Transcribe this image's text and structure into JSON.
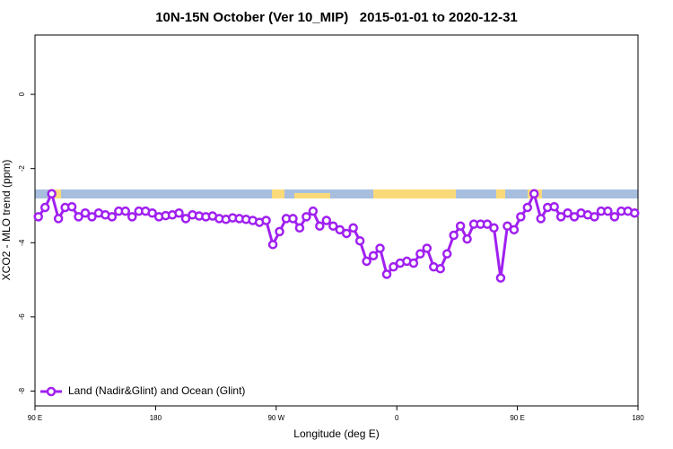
{
  "chart_data": {
    "type": "line",
    "title": "10N-15N October (Ver 10_MIP)   2015-01-01 to 2020-12-31",
    "x_label": "Longitude (deg E)",
    "y_label": "XCO2 - MLO trend (ppm)",
    "xlim": [
      90,
      540
    ],
    "xticks": [
      {
        "value": 90,
        "label": "90 E"
      },
      180,
      {
        "value": 270,
        "label": "90 W"
      },
      {
        "value": 360,
        "label": "0"
      },
      {
        "value": 450,
        "label": "90 E"
      },
      {
        "value": 540,
        "label": "180"
      }
    ],
    "ylim": [
      -8.4,
      1.6
    ],
    "yticks": [
      0,
      -2,
      -4,
      -6,
      -8
    ],
    "legend": "bottom-left",
    "series": [
      {
        "name": "Land (Nadir&Glint) and Ocean (Glint)",
        "color": "#a020f0",
        "x": [
          92.5,
          97.5,
          102.5,
          107.5,
          112.5,
          117.5,
          122.5,
          127.5,
          132.5,
          137.5,
          142.5,
          147.5,
          152.5,
          157.5,
          162.5,
          167.5,
          172.5,
          177.5,
          182.5,
          187.5,
          192.5,
          197.5,
          202.5,
          207.5,
          212.5,
          217.5,
          222.5,
          227.5,
          232.5,
          237.5,
          242.5,
          247.5,
          252.5,
          257.5,
          262.5,
          267.5,
          272.5,
          277.5,
          282.5,
          287.5,
          292.5,
          297.5,
          302.5,
          307.5,
          312.5,
          317.5,
          322.5,
          327.5,
          332.5,
          337.5,
          342.5,
          347.5,
          352.5,
          357.5,
          362.5,
          367.5,
          372.5,
          377.5,
          382.5,
          387.5,
          392.5,
          397.5,
          402.5,
          407.5,
          412.5,
          417.5,
          422.5,
          427.5,
          432.5,
          437.5,
          442.5,
          447.5,
          452.5,
          457.5,
          462.5,
          467.5,
          472.5,
          477.5,
          482.5,
          487.5,
          492.5,
          497.5,
          502.5,
          507.5,
          512.5,
          517.5,
          522.5,
          527.5,
          532.5,
          537.5
        ],
        "values": [
          -3.3,
          -3.05,
          -2.68,
          -3.35,
          -3.05,
          -3.03,
          -3.3,
          -3.2,
          -3.3,
          -3.2,
          -3.25,
          -3.3,
          -3.15,
          -3.15,
          -3.3,
          -3.15,
          -3.15,
          -3.2,
          -3.3,
          -3.27,
          -3.25,
          -3.2,
          -3.35,
          -3.25,
          -3.28,
          -3.3,
          -3.28,
          -3.35,
          -3.37,
          -3.33,
          -3.35,
          -3.37,
          -3.4,
          -3.45,
          -3.4,
          -4.05,
          -3.7,
          -3.35,
          -3.35,
          -3.6,
          -3.3,
          -3.15,
          -3.55,
          -3.4,
          -3.55,
          -3.65,
          -3.75,
          -3.6,
          -3.95,
          -4.5,
          -4.35,
          -4.15,
          -4.85,
          -4.65,
          -4.55,
          -4.5,
          -4.55,
          -4.3,
          -4.15,
          -4.65,
          -4.7,
          -4.3,
          -3.8,
          -3.55,
          -3.9,
          -3.5,
          -3.5,
          -3.5,
          -3.6,
          -4.95,
          -3.55,
          -3.65,
          -3.3,
          -3.05,
          -2.68,
          -3.35,
          -3.05,
          -3.03,
          -3.3,
          -3.2,
          -3.3,
          -3.2,
          -3.25,
          -3.3,
          -3.15,
          -3.15,
          -3.3,
          -3.15,
          -3.15,
          -3.2
        ]
      }
    ]
  }
}
